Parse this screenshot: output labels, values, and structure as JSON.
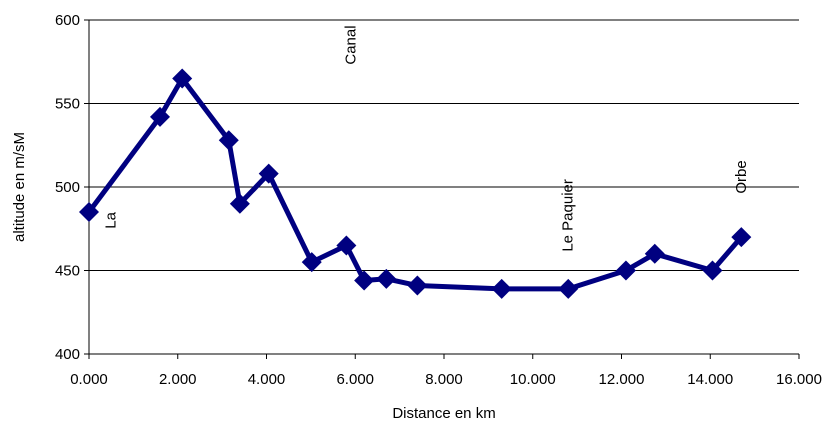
{
  "chart_data": {
    "type": "line",
    "title": "",
    "xlabel": "Distance en km",
    "ylabel": "altitude en m/sM",
    "xlim": [
      0,
      16
    ],
    "ylim": [
      400,
      600
    ],
    "x_ticks": [
      "0.000",
      "2.000",
      "4.000",
      "6.000",
      "8.000",
      "10.000",
      "12.000",
      "14.000",
      "16.000"
    ],
    "y_ticks": [
      "400",
      "450",
      "500",
      "550",
      "600"
    ],
    "grid": "horizontal major gridlines",
    "legend": "none",
    "series": [
      {
        "color": "#000080",
        "marker": "diamond",
        "x": [
          0.0,
          1.6,
          2.1,
          3.15,
          3.4,
          4.05,
          5.02,
          5.8,
          6.2,
          6.7,
          7.4,
          9.3,
          10.8,
          12.1,
          12.75,
          14.05,
          14.7
        ],
        "y": [
          485,
          542,
          565,
          528,
          490,
          508,
          455,
          465,
          444,
          445,
          441,
          439,
          439,
          450,
          460,
          450,
          470
        ]
      }
    ],
    "annotations": [
      {
        "text": "La",
        "x": 0.6,
        "y": 480
      },
      {
        "text": "Canal",
        "x": 6.0,
        "y": 585
      },
      {
        "text": "Le Paquier",
        "x": 10.9,
        "y": 483
      },
      {
        "text": "Orbe",
        "x": 14.8,
        "y": 506
      }
    ]
  }
}
